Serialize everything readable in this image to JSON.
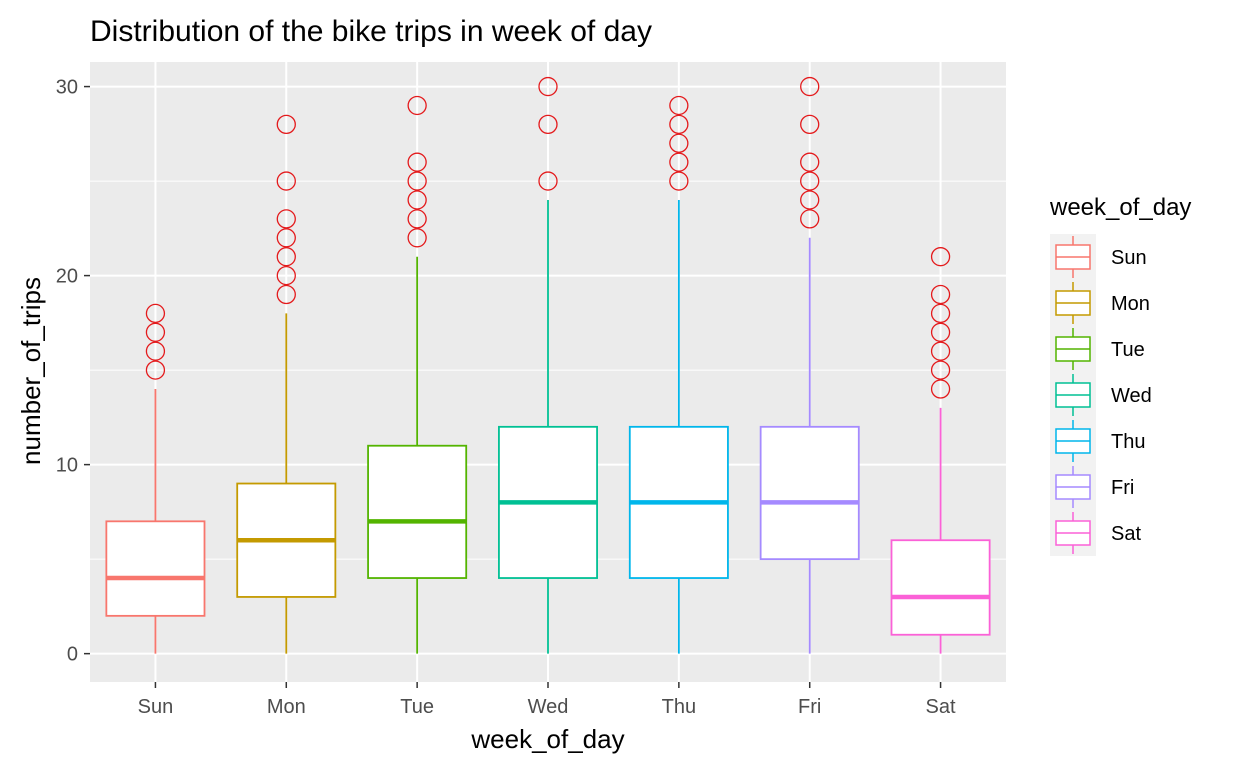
{
  "chart_data": {
    "type": "boxplot",
    "title": "Distribution of the bike trips in week of day",
    "xlabel": "week_of_day",
    "ylabel": "number_of_trips",
    "ylim": [
      -1.5,
      31.3
    ],
    "yticks": [
      0,
      10,
      20,
      30
    ],
    "grid": true,
    "legend": {
      "title": "week_of_day",
      "position": "right"
    },
    "outlier_color": "#E41A1C",
    "series": [
      {
        "name": "Sun",
        "color": "#F8766D",
        "whisker_low": 0,
        "q1": 2,
        "median": 4,
        "q3": 7,
        "whisker_high": 14,
        "outliers": [
          15,
          16,
          17,
          18
        ]
      },
      {
        "name": "Mon",
        "color": "#C49A00",
        "whisker_low": 0,
        "q1": 3,
        "median": 6,
        "q3": 9,
        "whisker_high": 18,
        "outliers": [
          19,
          20,
          21,
          22,
          23,
          25,
          28
        ]
      },
      {
        "name": "Tue",
        "color": "#53B400",
        "whisker_low": 0,
        "q1": 4,
        "median": 7,
        "q3": 11,
        "whisker_high": 21,
        "outliers": [
          22,
          23,
          24,
          25,
          26,
          29
        ]
      },
      {
        "name": "Wed",
        "color": "#00C094",
        "whisker_low": 0,
        "q1": 4,
        "median": 8,
        "q3": 12,
        "whisker_high": 24,
        "outliers": [
          25,
          28,
          30
        ]
      },
      {
        "name": "Thu",
        "color": "#00B6EB",
        "whisker_low": 0,
        "q1": 4,
        "median": 8,
        "q3": 12,
        "whisker_high": 24,
        "outliers": [
          25,
          26,
          27,
          28,
          29
        ]
      },
      {
        "name": "Fri",
        "color": "#A58AFF",
        "whisker_low": 0,
        "q1": 5,
        "median": 8,
        "q3": 12,
        "whisker_high": 22,
        "outliers": [
          23,
          24,
          25,
          26,
          28,
          30
        ]
      },
      {
        "name": "Sat",
        "color": "#FB61D7",
        "whisker_low": 0,
        "q1": 1,
        "median": 3,
        "q3": 6,
        "whisker_high": 13,
        "outliers": [
          14,
          15,
          16,
          17,
          18,
          19,
          21
        ]
      }
    ]
  }
}
